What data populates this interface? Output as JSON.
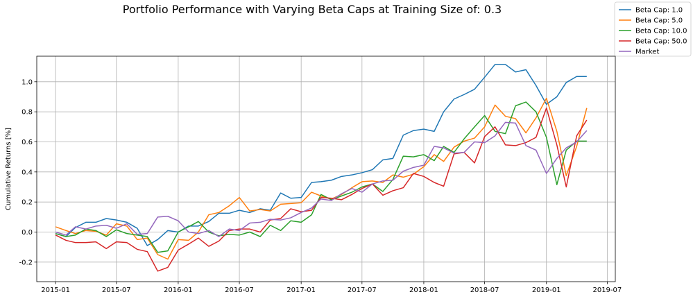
{
  "chart_data": {
    "type": "line",
    "title": "Portfolio Performance with Varying Beta Caps at Training Size of: 0.3",
    "xlabel": "",
    "ylabel": "Cumulative Returns [%]",
    "xlim": [
      "2014-11-06",
      "2019-07-25"
    ],
    "ylim": [
      -0.33,
      1.17
    ],
    "grid": true,
    "legend_position": "top-right",
    "x_ticks": [
      "2015-01",
      "2015-07",
      "2016-01",
      "2016-07",
      "2017-01",
      "2017-07",
      "2018-01",
      "2018-07",
      "2019-01",
      "2019-07"
    ],
    "y_ticks": [
      "-0.2",
      "0.0",
      "0.2",
      "0.4",
      "0.6",
      "0.8",
      "1.0"
    ],
    "x": [
      "2015-01-01",
      "2015-02-01",
      "2015-03-01",
      "2015-04-01",
      "2015-05-01",
      "2015-06-01",
      "2015-07-01",
      "2015-08-01",
      "2015-09-01",
      "2015-10-01",
      "2015-11-01",
      "2015-12-01",
      "2016-01-01",
      "2016-02-01",
      "2016-03-01",
      "2016-04-01",
      "2016-05-01",
      "2016-06-01",
      "2016-07-01",
      "2016-08-01",
      "2016-09-01",
      "2016-10-01",
      "2016-11-01",
      "2016-12-01",
      "2017-01-01",
      "2017-02-01",
      "2017-03-01",
      "2017-04-01",
      "2017-05-01",
      "2017-06-01",
      "2017-07-01",
      "2017-08-01",
      "2017-09-01",
      "2017-10-01",
      "2017-11-01",
      "2017-12-01",
      "2018-01-01",
      "2018-02-01",
      "2018-03-01",
      "2018-04-01",
      "2018-05-01",
      "2018-06-01",
      "2018-07-01",
      "2018-08-01",
      "2018-09-01",
      "2018-10-01",
      "2018-11-01",
      "2018-12-01",
      "2019-01-01",
      "2019-02-01",
      "2019-03-01",
      "2019-04-01",
      "2019-05-01"
    ],
    "series": [
      {
        "name": "Beta Cap: 1.0",
        "color": "#1f77b4",
        "values": [
          -0.01,
          -0.03,
          0.03,
          0.065,
          0.065,
          0.09,
          0.08,
          0.065,
          0.025,
          -0.09,
          -0.05,
          0.01,
          0.0,
          0.04,
          0.04,
          0.07,
          0.125,
          0.125,
          0.145,
          0.13,
          0.155,
          0.145,
          0.26,
          0.225,
          0.23,
          0.33,
          0.335,
          0.345,
          0.37,
          0.38,
          0.395,
          0.415,
          0.48,
          0.49,
          0.645,
          0.675,
          0.685,
          0.67,
          0.8,
          0.885,
          0.915,
          0.95,
          1.03,
          1.115,
          1.115,
          1.065,
          1.08,
          0.975,
          0.85,
          0.9,
          0.995,
          1.035,
          1.035
        ]
      },
      {
        "name": "Beta Cap: 5.0",
        "color": "#ff7f0e",
        "values": [
          0.035,
          0.01,
          -0.01,
          0.01,
          0.005,
          -0.02,
          0.055,
          0.04,
          -0.05,
          -0.04,
          -0.15,
          -0.18,
          -0.05,
          -0.055,
          0.0,
          0.115,
          0.13,
          0.175,
          0.23,
          0.14,
          0.15,
          0.14,
          0.185,
          0.19,
          0.195,
          0.265,
          0.24,
          0.22,
          0.25,
          0.295,
          0.335,
          0.34,
          0.33,
          0.38,
          0.365,
          0.385,
          0.435,
          0.515,
          0.47,
          0.565,
          0.605,
          0.625,
          0.7,
          0.845,
          0.77,
          0.755,
          0.66,
          0.76,
          0.89,
          0.67,
          0.375,
          0.57,
          0.825
        ]
      },
      {
        "name": "Beta Cap: 10.0",
        "color": "#2ca02c",
        "values": [
          -0.01,
          -0.03,
          -0.02,
          0.02,
          0.01,
          -0.03,
          0.015,
          -0.01,
          -0.02,
          -0.03,
          -0.135,
          -0.125,
          0.0,
          0.035,
          0.07,
          0.0,
          -0.025,
          -0.015,
          -0.02,
          0.0,
          -0.03,
          0.045,
          0.01,
          0.075,
          0.065,
          0.115,
          0.25,
          0.215,
          0.24,
          0.265,
          0.3,
          0.32,
          0.27,
          0.35,
          0.505,
          0.5,
          0.515,
          0.475,
          0.57,
          0.53,
          0.62,
          0.7,
          0.775,
          0.67,
          0.655,
          0.84,
          0.865,
          0.8,
          0.63,
          0.315,
          0.545,
          0.605,
          0.605
        ]
      },
      {
        "name": "Beta Cap: 50.0",
        "color": "#d62728",
        "values": [
          -0.02,
          -0.055,
          -0.07,
          -0.07,
          -0.065,
          -0.11,
          -0.065,
          -0.07,
          -0.115,
          -0.13,
          -0.26,
          -0.235,
          -0.12,
          -0.08,
          -0.04,
          -0.095,
          -0.06,
          0.01,
          0.02,
          0.02,
          0.0,
          0.08,
          0.09,
          0.155,
          0.135,
          0.145,
          0.23,
          0.225,
          0.215,
          0.25,
          0.29,
          0.32,
          0.245,
          0.275,
          0.295,
          0.39,
          0.37,
          0.33,
          0.305,
          0.52,
          0.53,
          0.46,
          0.635,
          0.7,
          0.58,
          0.575,
          0.595,
          0.63,
          0.825,
          0.58,
          0.3,
          0.64,
          0.745
        ]
      },
      {
        "name": "Market",
        "color": "#9467bd",
        "values": [
          0.0,
          -0.02,
          0.035,
          0.02,
          0.04,
          0.045,
          0.025,
          0.055,
          -0.015,
          -0.01,
          0.1,
          0.105,
          0.075,
          0.0,
          -0.01,
          0.01,
          -0.03,
          0.02,
          0.01,
          0.06,
          0.065,
          0.085,
          0.08,
          0.095,
          0.13,
          0.16,
          0.22,
          0.21,
          0.255,
          0.29,
          0.265,
          0.32,
          0.34,
          0.345,
          0.405,
          0.43,
          0.445,
          0.57,
          0.56,
          0.525,
          0.53,
          0.6,
          0.595,
          0.64,
          0.73,
          0.725,
          0.575,
          0.545,
          0.39,
          0.49,
          0.56,
          0.6,
          0.675
        ]
      }
    ]
  }
}
